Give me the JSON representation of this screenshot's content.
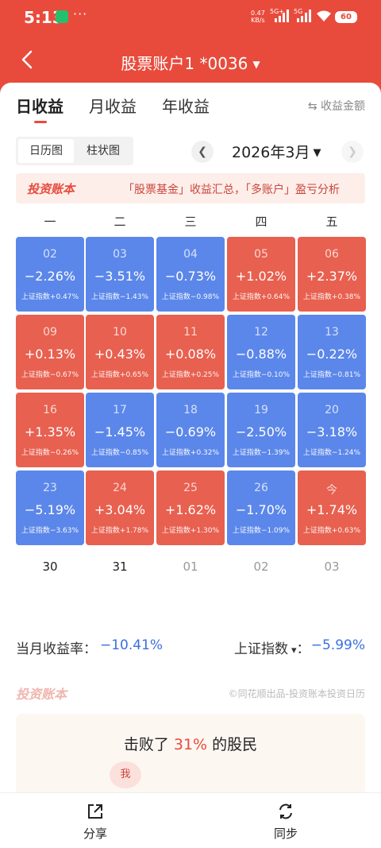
{
  "status": {
    "time": "5:13",
    "net_speed": "0.47",
    "net_unit": "KB/s",
    "sig1": "5G+",
    "sig2": "5G",
    "battery": "60"
  },
  "header": {
    "title": "股票账户1 *0036"
  },
  "tabs": [
    "日收益",
    "月收益",
    "年收益"
  ],
  "amount_toggle": "⇆ 收益金额",
  "view_switch": [
    "日历图",
    "柱状图"
  ],
  "month": "2026年3月",
  "banner": {
    "logo": "投资账本",
    "text": "「股票基金」收益汇总，「多账户」盈亏分析"
  },
  "weekdays": [
    "一",
    "二",
    "三",
    "四",
    "五"
  ],
  "weeks": [
    [
      {
        "day": "02",
        "ret": "−2.26%",
        "idx": "上证指数+0.47%",
        "dir": "down"
      },
      {
        "day": "03",
        "ret": "−3.51%",
        "idx": "上证指数−1.43%",
        "dir": "down"
      },
      {
        "day": "04",
        "ret": "−0.73%",
        "idx": "上证指数−0.98%",
        "dir": "down"
      },
      {
        "day": "05",
        "ret": "+1.02%",
        "idx": "上证指数+0.64%",
        "dir": "up"
      },
      {
        "day": "06",
        "ret": "+2.37%",
        "idx": "上证指数+0.38%",
        "dir": "up"
      }
    ],
    [
      {
        "day": "09",
        "ret": "+0.13%",
        "idx": "上证指数−0.67%",
        "dir": "up"
      },
      {
        "day": "10",
        "ret": "+0.43%",
        "idx": "上证指数+0.65%",
        "dir": "up"
      },
      {
        "day": "11",
        "ret": "+0.08%",
        "idx": "上证指数+0.25%",
        "dir": "up"
      },
      {
        "day": "12",
        "ret": "−0.88%",
        "idx": "上证指数−0.10%",
        "dir": "down"
      },
      {
        "day": "13",
        "ret": "−0.22%",
        "idx": "上证指数−0.81%",
        "dir": "down"
      }
    ],
    [
      {
        "day": "16",
        "ret": "+1.35%",
        "idx": "上证指数−0.26%",
        "dir": "up"
      },
      {
        "day": "17",
        "ret": "−1.45%",
        "idx": "上证指数−0.85%",
        "dir": "down"
      },
      {
        "day": "18",
        "ret": "−0.69%",
        "idx": "上证指数+0.32%",
        "dir": "down"
      },
      {
        "day": "19",
        "ret": "−2.50%",
        "idx": "上证指数−1.39%",
        "dir": "down"
      },
      {
        "day": "20",
        "ret": "−3.18%",
        "idx": "上证指数−1.24%",
        "dir": "down"
      }
    ],
    [
      {
        "day": "23",
        "ret": "−5.19%",
        "idx": "上证指数−3.63%",
        "dir": "down"
      },
      {
        "day": "24",
        "ret": "+3.04%",
        "idx": "上证指数+1.78%",
        "dir": "up"
      },
      {
        "day": "25",
        "ret": "+1.62%",
        "idx": "上证指数+1.30%",
        "dir": "up"
      },
      {
        "day": "26",
        "ret": "−1.70%",
        "idx": "上证指数−1.09%",
        "dir": "down"
      },
      {
        "day": "今",
        "ret": "+1.74%",
        "idx": "上证指数+0.63%",
        "dir": "up"
      }
    ]
  ],
  "next_days": [
    "30",
    "31",
    "01",
    "02",
    "03"
  ],
  "summary": {
    "month_label": "当月收益率：",
    "month_value": "−10.41%",
    "index_label": "上证指数",
    "index_caret": "▾",
    "index_sep": "：",
    "index_value": "−5.99%"
  },
  "footer": {
    "logo": "投资账本",
    "credit": "©同花顺出品-投资账本投资日历"
  },
  "beat": {
    "prefix": "击败了 ",
    "pct": "31%",
    "suffix": " 的股民",
    "me": "我"
  },
  "bottom": {
    "share": "分享",
    "sync": "同步"
  },
  "colors": {
    "brand": "#e84b3c",
    "up": "#e8604f",
    "down": "#5b87ea"
  }
}
